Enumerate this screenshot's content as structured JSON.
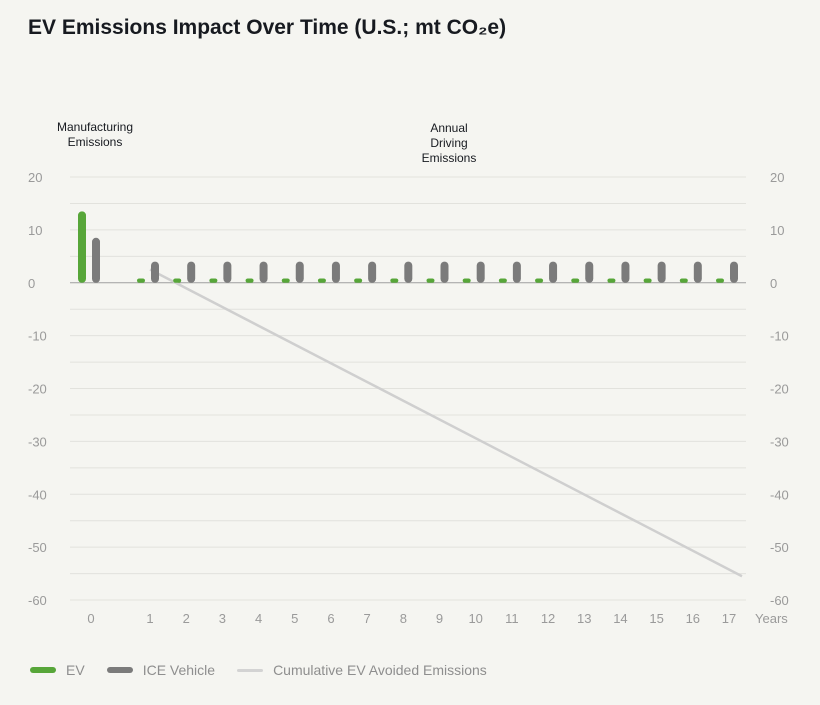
{
  "title": "EV Emissions Impact Over Time (U.S.; mt CO₂e)",
  "colors": {
    "ev": "#57a639",
    "ice": "#7b7b7b",
    "cumulative": "#cfcfcf",
    "grid": "#e2e2dd",
    "tick": "#9a9a9a",
    "annotation": "#171a20"
  },
  "chart_data": {
    "type": "bar",
    "title": "EV Emissions Impact Over Time (U.S.; mt CO₂e)",
    "xlabel": "Years",
    "ylabel": "",
    "ylim": [
      -60,
      20
    ],
    "yticks": [
      20,
      10,
      0,
      -10,
      -20,
      -30,
      -40,
      -50,
      -60
    ],
    "categories": [
      "0",
      "1",
      "2",
      "3",
      "4",
      "5",
      "6",
      "7",
      "8",
      "9",
      "10",
      "11",
      "12",
      "13",
      "14",
      "15",
      "16",
      "17"
    ],
    "annotations": [
      "Manufacturing Emissions",
      "Annual Driving Emissions"
    ],
    "series": [
      {
        "name": "EV",
        "type": "bar",
        "values": [
          13.5,
          0.8,
          0.8,
          0.8,
          0.8,
          0.8,
          0.8,
          0.8,
          0.8,
          0.8,
          0.8,
          0.8,
          0.8,
          0.8,
          0.8,
          0.8,
          0.8,
          0.8
        ]
      },
      {
        "name": "ICE Vehicle",
        "type": "bar",
        "values": [
          8.5,
          4,
          4,
          4,
          4,
          4,
          4,
          4,
          4,
          4,
          4,
          4,
          4,
          4,
          4,
          4,
          4,
          4
        ]
      },
      {
        "name": "Cumulative EV Avoided Emissions",
        "type": "line",
        "x": [
          1,
          17
        ],
        "values": [
          2.5,
          -55.5
        ]
      }
    ],
    "grid": true,
    "legend_position": "bottom-left"
  }
}
